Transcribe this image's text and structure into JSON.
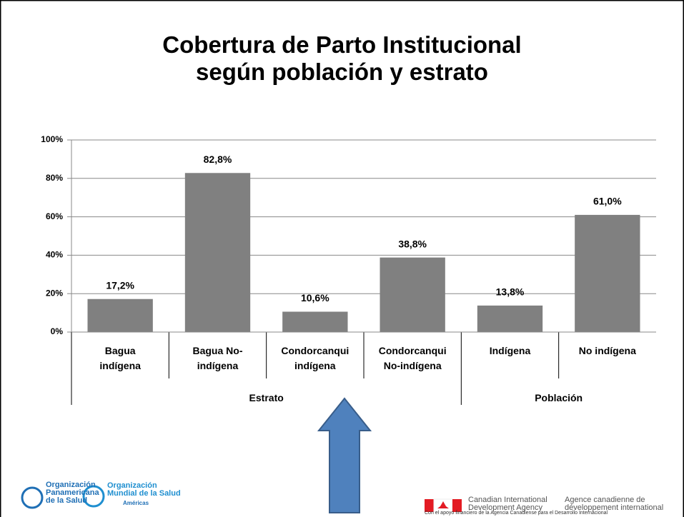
{
  "chart_data": {
    "type": "bar",
    "title": "Cobertura de Parto Institucional\nsegún población y estrato",
    "categories": [
      "Bagua\nindígena",
      "Bagua No-\nindígena",
      "Condorcanqui\nindígena",
      "Condorcanqui\nNo-indígena",
      "Indígena",
      "No indígena"
    ],
    "category_groups": [
      "Estrato",
      "Estrato",
      "Estrato",
      "Estrato",
      "Población",
      "Población"
    ],
    "values": [
      17.2,
      82.8,
      10.6,
      38.8,
      13.8,
      61.0
    ],
    "value_labels": [
      "17,2%",
      "82,8%",
      "10,6%",
      "38,8%",
      "13,8%",
      "61,0%"
    ],
    "color": "#808080",
    "ylim": [
      0,
      100
    ],
    "yticks": [
      {
        "value": 0,
        "label": "0%"
      },
      {
        "value": 20,
        "label": "20%"
      },
      {
        "value": 40,
        "label": "40%"
      },
      {
        "value": 60,
        "label": "60%"
      },
      {
        "value": 80,
        "label": "80%"
      },
      {
        "value": 100,
        "label": "100%"
      }
    ],
    "grid": true
  },
  "footer": {
    "paho": "Organización\nPanamericana\nde la Salud",
    "who": "Organización\nMundial de la Salud",
    "americas": "Américas",
    "cida_en": "Canadian International\nDevelopment Agency",
    "cida_fr": "Agence canadienne de\ndéveloppement international",
    "support": "Con el apoyo financiero de la Agencia Canadiense para el Desarrollo Internacional"
  }
}
